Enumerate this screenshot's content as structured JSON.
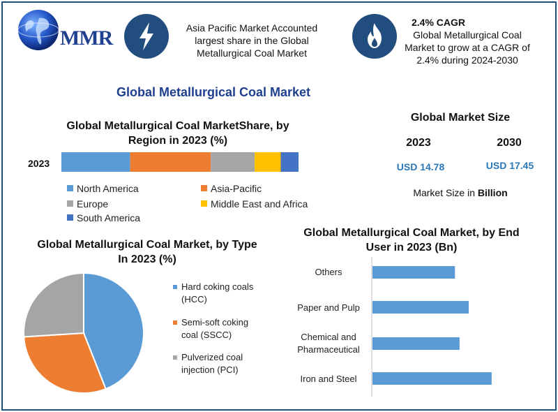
{
  "logo": {
    "text": "MMR"
  },
  "header": {
    "callout1": {
      "icon": "lightning-bolt-icon",
      "text": "Asia Pacific Market Accounted largest share in the Global Metallurgical Coal Market"
    },
    "callout2": {
      "icon": "flame-icon",
      "title": "2.4% CAGR",
      "text": "Global Metallurgical Coal Market to grow at a CAGR of 2.4% during 2024-2030"
    }
  },
  "main_title": "Global Metallurgical Coal Market",
  "market_size": {
    "title": "Global Market Size",
    "years": [
      "2023",
      "2030"
    ],
    "values": [
      "USD 14.78",
      "USD 17.45"
    ],
    "unit_prefix": "Market Size in",
    "unit_bold": "Billion"
  },
  "colors": {
    "north_america": "#5b9bd5",
    "asia_pacific": "#ed7d31",
    "europe": "#a5a5a5",
    "mea": "#ffc000",
    "south_america": "#4472c4",
    "bars": "#5b9bd5"
  },
  "chart_data": [
    {
      "type": "bar",
      "orientation": "horizontal-stacked",
      "title": "Global Metallurgical Coal MarketShare, by Region in 2023 (%)",
      "categories": [
        "2023"
      ],
      "series": [
        {
          "name": "North America",
          "values": [
            29
          ]
        },
        {
          "name": "Asia-Pacific",
          "values": [
            34
          ]
        },
        {
          "name": "Europe",
          "values": [
            18.5
          ]
        },
        {
          "name": "Middle East and Africa",
          "values": [
            11
          ]
        },
        {
          "name": "South America",
          "values": [
            7.5
          ]
        }
      ],
      "xlim": [
        0,
        100
      ],
      "grid": false,
      "legend": "bottom"
    },
    {
      "type": "pie",
      "title": "Global Metallurgical Coal Market, by Type In 2023 (%)",
      "labels": [
        "Hard coking coals (HCC)",
        "Semi-soft coking coal (SSCC)",
        "Pulverized coal injection (PCI)"
      ],
      "values": [
        44,
        30,
        26
      ],
      "legend": "right"
    },
    {
      "type": "bar",
      "orientation": "horizontal",
      "title": "Global Metallurgical Coal Market, by End User in 2023 (Bn)",
      "categories": [
        "Others",
        "Paper and Pulp",
        "Chemical and Pharmaceutical",
        "Iron and Steel"
      ],
      "values": [
        1.8,
        2.1,
        1.9,
        2.6
      ],
      "xlim": [
        0,
        3.5
      ],
      "grid": false
    }
  ]
}
